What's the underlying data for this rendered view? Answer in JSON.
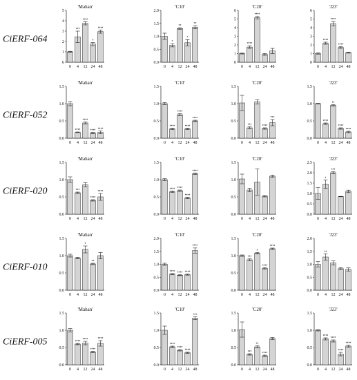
{
  "rows": [
    {
      "gene": "CiERF-064"
    },
    {
      "gene": "CiERF-052"
    },
    {
      "gene": "CiERF-020"
    },
    {
      "gene": "CiERF-010"
    },
    {
      "gene": "CiERF-005"
    }
  ],
  "colors": {
    "bar": "#d4d4d4",
    "stroke": "#222222"
  },
  "chart_data": [
    {
      "type": "bar",
      "title": "'Mahan'",
      "categories": [
        "0",
        "4",
        "12",
        "24",
        "48"
      ],
      "values": [
        1.0,
        2.45,
        3.75,
        1.75,
        2.95
      ],
      "errors": [
        0.05,
        0.55,
        0.15,
        0.15,
        0.15
      ],
      "sig": [
        "",
        "***",
        "****",
        "*",
        "****"
      ],
      "yticks": [
        "0",
        "1",
        "2",
        "3",
        "4",
        "5"
      ],
      "ylim": [
        0,
        5
      ]
    },
    {
      "type": "bar",
      "title": "'C10'",
      "categories": [
        "0",
        "4",
        "12",
        "24",
        "48"
      ],
      "values": [
        1.0,
        0.65,
        1.3,
        0.75,
        1.35
      ],
      "errors": [
        0.12,
        0.06,
        0.03,
        0.12,
        0.06
      ],
      "sig": [
        "",
        "*",
        "**",
        "*",
        "**"
      ],
      "yticks": [
        "0.0",
        "0.5",
        "1.0",
        "1.5",
        "2.0"
      ],
      "ylim": [
        0,
        2.0
      ]
    },
    {
      "type": "bar",
      "title": "'C20'",
      "categories": [
        "0",
        "4",
        "12",
        "24",
        "48"
      ],
      "values": [
        1.0,
        1.75,
        5.15,
        0.9,
        1.3
      ],
      "errors": [
        0.05,
        0.15,
        0.15,
        0.1,
        0.3
      ],
      "sig": [
        "",
        "****",
        "****",
        "",
        ""
      ],
      "yticks": [
        "0",
        "1",
        "2",
        "3",
        "4",
        "5",
        "6"
      ],
      "ylim": [
        0,
        6
      ]
    },
    {
      "type": "bar",
      "title": "'J23'",
      "categories": [
        "0",
        "4",
        "12",
        "24",
        "48"
      ],
      "values": [
        1.0,
        2.2,
        4.45,
        1.7,
        1.1
      ],
      "errors": [
        0.08,
        0.12,
        0.25,
        0.1,
        0.05
      ],
      "sig": [
        "",
        "****",
        "****",
        "****",
        ""
      ],
      "yticks": [
        "0",
        "1",
        "2",
        "3",
        "4",
        "5",
        "6"
      ],
      "ylim": [
        0,
        6
      ]
    },
    {
      "type": "bar",
      "title": "'Mahan'",
      "categories": [
        "0",
        "4",
        "12",
        "24",
        "48"
      ],
      "values": [
        1.0,
        0.17,
        0.44,
        0.15,
        0.17
      ],
      "errors": [
        0.06,
        0.01,
        0.03,
        0.02,
        0.04
      ],
      "sig": [
        "",
        "****",
        "****",
        "****",
        "****"
      ],
      "yticks": [
        "0.0",
        "0.5",
        "1.0",
        "1.5"
      ],
      "ylim": [
        0,
        1.5
      ]
    },
    {
      "type": "bar",
      "title": "'C10'",
      "categories": [
        "0",
        "4",
        "12",
        "24",
        "48"
      ],
      "values": [
        1.0,
        0.27,
        0.68,
        0.27,
        0.5
      ],
      "errors": [
        0.03,
        0.02,
        0.03,
        0.02,
        0.02
      ],
      "sig": [
        "",
        "****",
        "****",
        "****",
        "****"
      ],
      "yticks": [
        "0.0",
        "0.5",
        "1.0",
        "1.5"
      ],
      "ylim": [
        0,
        1.5
      ]
    },
    {
      "type": "bar",
      "title": "'C20'",
      "categories": [
        "0",
        "4",
        "12",
        "24",
        "48"
      ],
      "values": [
        1.02,
        0.3,
        1.05,
        0.28,
        0.45
      ],
      "errors": [
        0.22,
        0.03,
        0.06,
        0.02,
        0.09
      ],
      "sig": [
        "",
        "***",
        "",
        "****",
        "***"
      ],
      "yticks": [
        "0.0",
        "0.5",
        "1.0",
        "1.5"
      ],
      "ylim": [
        0,
        1.5
      ]
    },
    {
      "type": "bar",
      "title": "'J23'",
      "categories": [
        "0",
        "4",
        "12",
        "24",
        "48"
      ],
      "values": [
        1.0,
        0.42,
        0.95,
        0.28,
        0.18
      ],
      "errors": [
        0.01,
        0.02,
        0.02,
        0.02,
        0.02
      ],
      "sig": [
        "",
        "****",
        "**",
        "****",
        "****"
      ],
      "yticks": [
        "0.0",
        "0.5",
        "1.0",
        "1.5"
      ],
      "ylim": [
        0,
        1.5
      ]
    },
    {
      "type": "bar",
      "title": "'Mahan'",
      "categories": [
        "0",
        "4",
        "12",
        "24",
        "48"
      ],
      "values": [
        1.0,
        0.62,
        0.85,
        0.4,
        0.5
      ],
      "errors": [
        0.08,
        0.02,
        0.06,
        0.02,
        0.1
      ],
      "sig": [
        "",
        "***",
        "",
        "****",
        "****"
      ],
      "yticks": [
        "0.0",
        "0.5",
        "1.0",
        "1.5"
      ],
      "ylim": [
        0,
        1.5
      ]
    },
    {
      "type": "bar",
      "title": "'C10'",
      "categories": [
        "0",
        "4",
        "12",
        "24",
        "48"
      ],
      "values": [
        1.0,
        0.65,
        0.68,
        0.47,
        1.17
      ],
      "errors": [
        0.03,
        0.02,
        0.02,
        0.02,
        0.02
      ],
      "sig": [
        "",
        "****",
        "****",
        "****",
        "****"
      ],
      "yticks": [
        "0.0",
        "0.5",
        "1.0",
        "1.5"
      ],
      "ylim": [
        0,
        1.5
      ]
    },
    {
      "type": "bar",
      "title": "'C20'",
      "categories": [
        "0",
        "4",
        "12",
        "24",
        "48"
      ],
      "values": [
        1.02,
        0.7,
        0.93,
        0.52,
        1.1
      ],
      "errors": [
        0.14,
        0.05,
        0.38,
        0.02,
        0.03
      ],
      "sig": [
        "",
        "",
        "",
        "",
        ""
      ],
      "yticks": [
        "0.0",
        "0.5",
        "1.0",
        "1.5"
      ],
      "ylim": [
        0,
        1.5
      ]
    },
    {
      "type": "bar",
      "title": "'J23'",
      "categories": [
        "0",
        "4",
        "12",
        "24",
        "48"
      ],
      "values": [
        1.0,
        1.45,
        2.0,
        0.85,
        1.1
      ],
      "errors": [
        0.28,
        0.2,
        0.05,
        0.01,
        0.06
      ],
      "sig": [
        "",
        "*",
        "***",
        "",
        ""
      ],
      "yticks": [
        "0.0",
        "0.5",
        "1.0",
        "1.5",
        "2.0",
        "2.5"
      ],
      "ylim": [
        0,
        2.5
      ]
    },
    {
      "type": "bar",
      "title": "'Mahan'",
      "categories": [
        "0",
        "4",
        "12",
        "24",
        "48"
      ],
      "values": [
        1.0,
        0.93,
        1.18,
        0.76,
        1.0
      ],
      "errors": [
        0.04,
        0.02,
        0.1,
        0.02,
        0.09
      ],
      "sig": [
        "",
        "",
        "*",
        "**",
        ""
      ],
      "yticks": [
        "0.0",
        "0.5",
        "1.0",
        "1.5"
      ],
      "ylim": [
        0,
        1.5
      ]
    },
    {
      "type": "bar",
      "title": "'C10'",
      "categories": [
        "0",
        "4",
        "12",
        "24",
        "48"
      ],
      "values": [
        1.0,
        0.62,
        0.58,
        0.6,
        1.53
      ],
      "errors": [
        0.04,
        0.02,
        0.02,
        0.02,
        0.1
      ],
      "sig": [
        "",
        "****",
        "****",
        "****",
        "****"
      ],
      "yticks": [
        "0.0",
        "0.5",
        "1.0",
        "1.5",
        "2.0"
      ],
      "ylim": [
        0,
        2.0
      ]
    },
    {
      "type": "bar",
      "title": "'C20'",
      "categories": [
        "0",
        "4",
        "12",
        "24",
        "48"
      ],
      "values": [
        1.0,
        0.88,
        1.07,
        0.63,
        1.2
      ],
      "errors": [
        0.02,
        0.03,
        0.02,
        0.02,
        0.02
      ],
      "sig": [
        "",
        "***",
        "*",
        "****",
        "****"
      ],
      "yticks": [
        "0.0",
        "0.5",
        "1.0",
        "1.5"
      ],
      "ylim": [
        0,
        1.5
      ]
    },
    {
      "type": "bar",
      "title": "'J23'",
      "categories": [
        "0",
        "4",
        "12",
        "24",
        "48"
      ],
      "values": [
        1.0,
        1.28,
        1.05,
        0.83,
        0.8
      ],
      "errors": [
        0.1,
        0.12,
        0.08,
        0.04,
        0.06
      ],
      "sig": [
        "",
        "**",
        "",
        "",
        ""
      ],
      "yticks": [
        "0.0",
        "0.5",
        "1.0",
        "1.5",
        "2.0"
      ],
      "ylim": [
        0,
        2.0
      ]
    },
    {
      "type": "bar",
      "title": "'Mahan'",
      "categories": [
        "0",
        "4",
        "12",
        "24",
        "48"
      ],
      "values": [
        1.0,
        0.6,
        0.63,
        0.37,
        0.62
      ],
      "errors": [
        0.05,
        0.02,
        0.05,
        0.02,
        0.08
      ],
      "sig": [
        "",
        "****",
        "****",
        "****",
        "****"
      ],
      "yticks": [
        "0.0",
        "0.5",
        "1.0",
        "1.5"
      ],
      "ylim": [
        0,
        1.5
      ]
    },
    {
      "type": "bar",
      "title": "'C10'",
      "categories": [
        "0",
        "4",
        "12",
        "24",
        "48"
      ],
      "values": [
        1.0,
        0.52,
        0.42,
        0.35,
        1.35
      ],
      "errors": [
        0.12,
        0.02,
        0.02,
        0.02,
        0.04
      ],
      "sig": [
        "",
        "****",
        "****",
        "****",
        "***"
      ],
      "yticks": [
        "0.0",
        "0.5",
        "1.0",
        "1.5"
      ],
      "ylim": [
        0,
        1.5
      ]
    },
    {
      "type": "bar",
      "title": "'C20'",
      "categories": [
        "0",
        "4",
        "12",
        "24",
        "48"
      ],
      "values": [
        1.02,
        0.3,
        0.52,
        0.26,
        0.76
      ],
      "errors": [
        0.22,
        0.02,
        0.03,
        0.02,
        0.03
      ],
      "sig": [
        "",
        "***",
        "**",
        "****",
        ""
      ],
      "yticks": [
        "0.0",
        "0.5",
        "1.0",
        "1.5"
      ],
      "ylim": [
        0,
        1.5
      ]
    },
    {
      "type": "bar",
      "title": "'J23'",
      "categories": [
        "0",
        "4",
        "12",
        "24",
        "48"
      ],
      "values": [
        1.0,
        0.75,
        0.69,
        0.31,
        0.54
      ],
      "errors": [
        0.02,
        0.03,
        0.03,
        0.05,
        0.03
      ],
      "sig": [
        "",
        "****",
        "****",
        "****",
        "****"
      ],
      "yticks": [
        "0.0",
        "0.5",
        "1.0",
        "1.5"
      ],
      "ylim": [
        0,
        1.5
      ]
    }
  ]
}
